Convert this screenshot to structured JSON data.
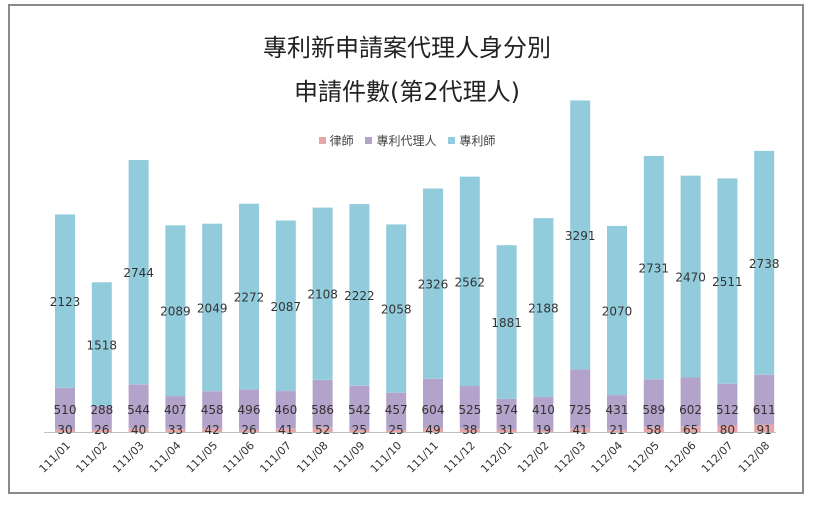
{
  "chart_data": {
    "type": "bar",
    "stacked": true,
    "title": "專利新申請案代理人身分別",
    "subtitle": "申請件數(第2代理人)",
    "xlabel": "",
    "ylabel": "",
    "categories": [
      "111/01",
      "111/02",
      "111/03",
      "111/04",
      "111/05",
      "111/06",
      "111/07",
      "111/08",
      "111/09",
      "111/10",
      "111/11",
      "111/12",
      "112/01",
      "112/02",
      "112/03",
      "112/04",
      "112/05",
      "112/06",
      "112/07",
      "112/08"
    ],
    "series": [
      {
        "name": "律師",
        "color": "#e8a5a8",
        "values": [
          30,
          26,
          40,
          33,
          42,
          26,
          41,
          52,
          25,
          25,
          49,
          38,
          31,
          19,
          41,
          21,
          58,
          65,
          80,
          91
        ]
      },
      {
        "name": "專利代理人",
        "color": "#b3a2c9",
        "values": [
          510,
          288,
          544,
          407,
          458,
          496,
          460,
          586,
          542,
          457,
          604,
          525,
          374,
          410,
          725,
          431,
          589,
          602,
          512,
          611
        ]
      },
      {
        "name": "專利師",
        "color": "#92ccdc",
        "values": [
          2123,
          1518,
          2744,
          2089,
          2049,
          2272,
          2087,
          2108,
          2222,
          2058,
          2326,
          2562,
          1881,
          2188,
          3291,
          2070,
          2731,
          2470,
          2511,
          2738
        ]
      }
    ],
    "ylim": [
      0,
      4100
    ],
    "grid": false,
    "legend_position": "top"
  }
}
